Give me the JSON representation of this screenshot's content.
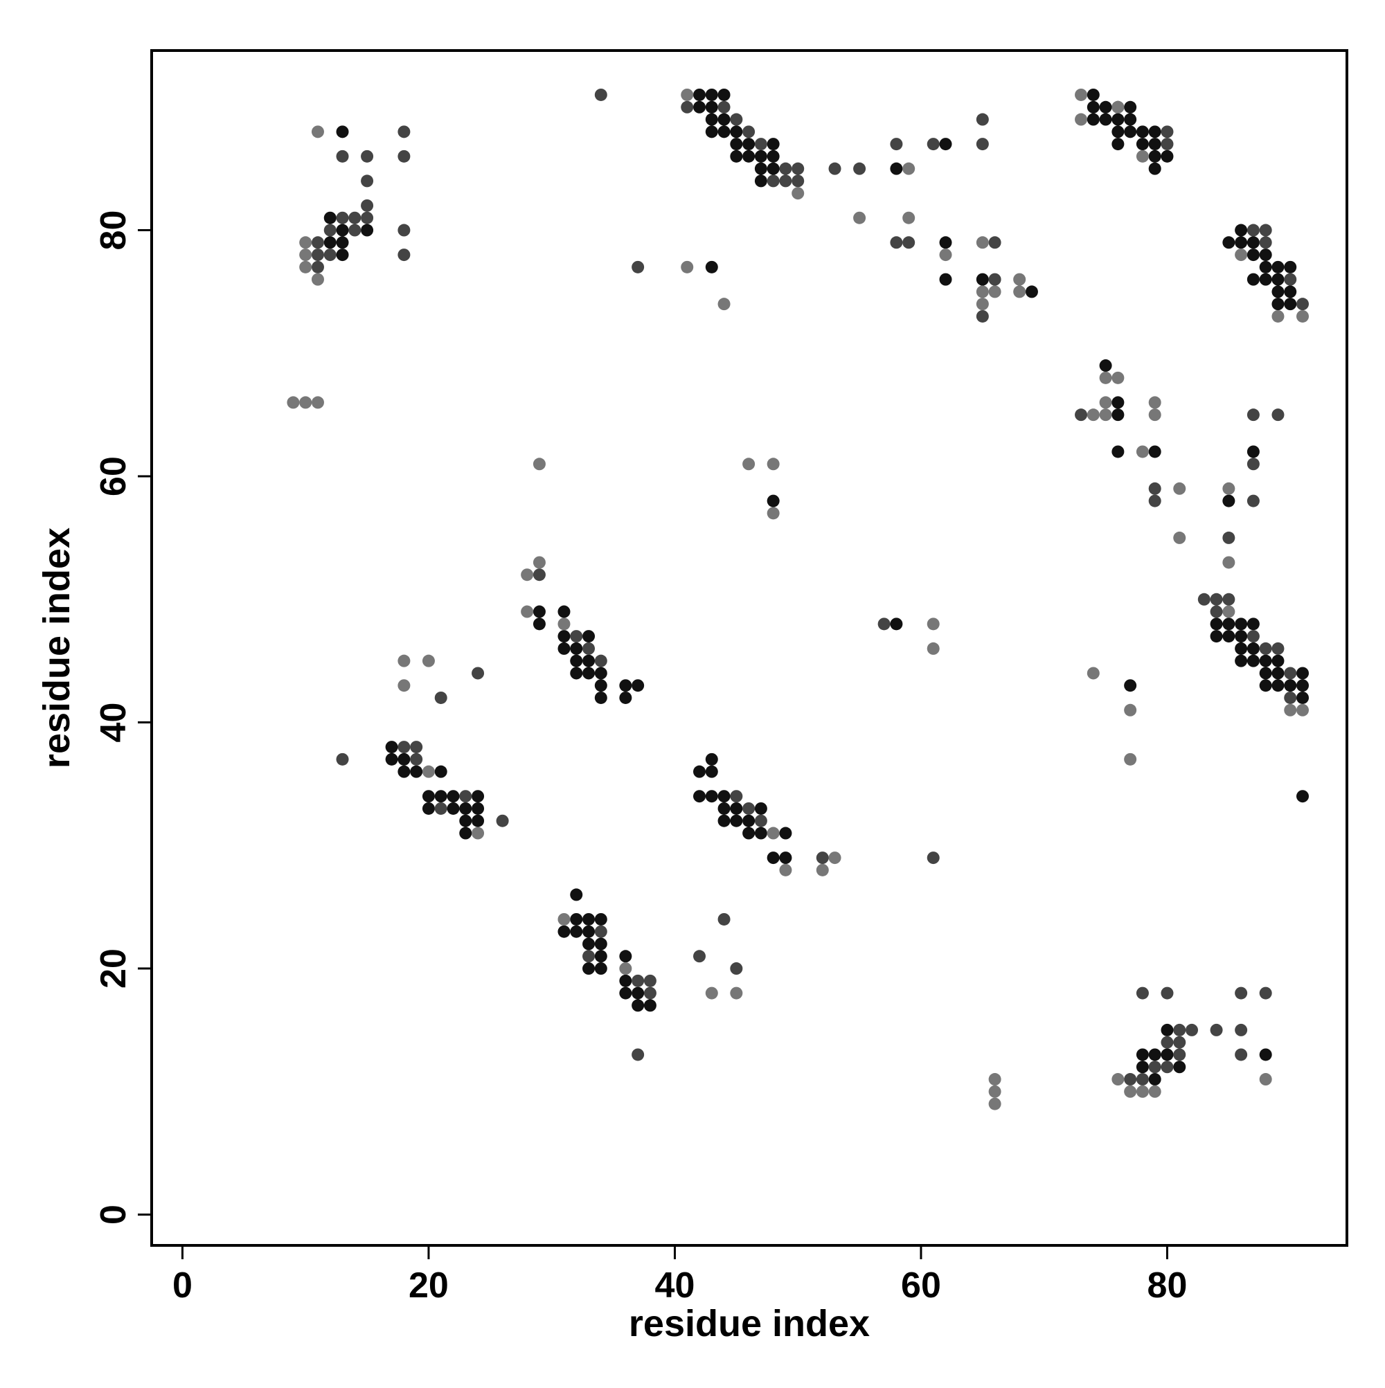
{
  "chart_data": {
    "type": "scatter",
    "xlabel": "residue index",
    "ylabel": "residue index",
    "xlim": [
      -2.5,
      94.6
    ],
    "ylim": [
      -2.5,
      94.6
    ],
    "xticks": [
      0,
      20,
      40,
      60,
      80
    ],
    "yticks": [
      0,
      20,
      40,
      60,
      80
    ],
    "grid": false,
    "series": [
      {
        "color": "#111111",
        "x": [
          42,
          43,
          44,
          74,
          42,
          43,
          74,
          75,
          76,
          77,
          43,
          44,
          74,
          75,
          76,
          77,
          13,
          43,
          44,
          45,
          76,
          77,
          78,
          79,
          45,
          46,
          48,
          62,
          76,
          78,
          79,
          45,
          46,
          47,
          48,
          79,
          80,
          47,
          48,
          58,
          79,
          47,
          12,
          13,
          15,
          86,
          12,
          13,
          62,
          85,
          86,
          87,
          13,
          87,
          88,
          43,
          88,
          89,
          90,
          62,
          65,
          87,
          88,
          89,
          69,
          89,
          90,
          89,
          90,
          75,
          76,
          76,
          76,
          79,
          87,
          48,
          85,
          29,
          31,
          29,
          58,
          84,
          85,
          86,
          87,
          31,
          33,
          84,
          85,
          86,
          31,
          32,
          86,
          87,
          32,
          33,
          86,
          87,
          88,
          89,
          32,
          33,
          34,
          88,
          89,
          91,
          34,
          36,
          37,
          77,
          88,
          89,
          90,
          91,
          34,
          36,
          91,
          17,
          17,
          18,
          43,
          18,
          19,
          21,
          42,
          43,
          20,
          21,
          22,
          24,
          42,
          43,
          44,
          91,
          20,
          22,
          23,
          24,
          44,
          45,
          47,
          23,
          24,
          44,
          45,
          46,
          23,
          46,
          47,
          49,
          48,
          49,
          32,
          32,
          33,
          34,
          31,
          32,
          33,
          33,
          34,
          34,
          36,
          33,
          34,
          36,
          36,
          37,
          37,
          38,
          80,
          78,
          79,
          80,
          88,
          78,
          81,
          79
        ],
        "values": [
          91,
          91,
          91,
          91,
          90,
          90,
          90,
          90,
          90,
          90,
          89,
          89,
          89,
          89,
          89,
          89,
          88,
          88,
          88,
          88,
          88,
          88,
          88,
          88,
          87,
          87,
          87,
          87,
          87,
          87,
          87,
          86,
          86,
          86,
          86,
          86,
          86,
          85,
          85,
          85,
          85,
          84,
          81,
          80,
          80,
          80,
          79,
          79,
          79,
          79,
          79,
          79,
          78,
          78,
          78,
          77,
          77,
          77,
          77,
          76,
          76,
          76,
          76,
          76,
          75,
          75,
          75,
          74,
          74,
          69,
          66,
          65,
          62,
          62,
          62,
          58,
          58,
          49,
          49,
          48,
          48,
          48,
          48,
          48,
          48,
          47,
          47,
          47,
          47,
          47,
          46,
          46,
          46,
          46,
          45,
          45,
          45,
          45,
          45,
          45,
          44,
          44,
          44,
          44,
          44,
          44,
          43,
          43,
          43,
          43,
          43,
          43,
          43,
          43,
          42,
          42,
          42,
          38,
          37,
          37,
          37,
          36,
          36,
          36,
          36,
          36,
          34,
          34,
          34,
          34,
          34,
          34,
          34,
          34,
          33,
          33,
          33,
          33,
          33,
          33,
          33,
          32,
          32,
          32,
          32,
          32,
          31,
          31,
          31,
          31,
          29,
          29,
          26,
          24,
          24,
          24,
          23,
          23,
          23,
          22,
          22,
          21,
          21,
          20,
          20,
          19,
          18,
          18,
          17,
          17,
          15,
          13,
          13,
          13,
          13,
          12,
          12,
          11
        ]
      },
      {
        "color": "#444444",
        "x": [
          34,
          41,
          44,
          45,
          65,
          18,
          46,
          80,
          47,
          58,
          61,
          65,
          80,
          13,
          15,
          18,
          49,
          50,
          53,
          55,
          15,
          48,
          49,
          50,
          15,
          13,
          14,
          15,
          12,
          14,
          18,
          87,
          88,
          11,
          58,
          59,
          66,
          88,
          11,
          12,
          18,
          11,
          37,
          66,
          90,
          91,
          65,
          73,
          87,
          89,
          87,
          79,
          79,
          87,
          85,
          29,
          83,
          84,
          85,
          84,
          57,
          32,
          87,
          33,
          88,
          89,
          34,
          24,
          90,
          21,
          90,
          18,
          19,
          13,
          19,
          23,
          45,
          21,
          46,
          26,
          47,
          52,
          61,
          44,
          34,
          33,
          42,
          45,
          37,
          38,
          38,
          78,
          80,
          86,
          88,
          81,
          82,
          84,
          86,
          80,
          81,
          37,
          81,
          86,
          79,
          80,
          77,
          78
        ],
        "values": [
          91,
          90,
          90,
          89,
          89,
          88,
          88,
          88,
          87,
          87,
          87,
          87,
          87,
          86,
          86,
          86,
          85,
          85,
          85,
          85,
          84,
          84,
          84,
          84,
          82,
          81,
          81,
          81,
          80,
          80,
          80,
          80,
          80,
          79,
          79,
          79,
          79,
          79,
          78,
          78,
          78,
          77,
          77,
          76,
          76,
          74,
          73,
          65,
          65,
          65,
          61,
          59,
          58,
          58,
          55,
          52,
          50,
          50,
          50,
          49,
          48,
          47,
          47,
          46,
          46,
          46,
          45,
          44,
          44,
          42,
          42,
          38,
          38,
          37,
          37,
          34,
          34,
          33,
          33,
          32,
          32,
          29,
          29,
          24,
          23,
          21,
          21,
          20,
          19,
          19,
          18,
          18,
          18,
          18,
          18,
          15,
          15,
          15,
          15,
          14,
          14,
          13,
          13,
          13,
          12,
          12,
          11,
          11
        ]
      },
      {
        "color": "#777777",
        "x": [
          41,
          73,
          76,
          73,
          11,
          78,
          59,
          50,
          55,
          59,
          10,
          65,
          10,
          62,
          86,
          10,
          41,
          11,
          68,
          65,
          66,
          68,
          44,
          65,
          89,
          91,
          75,
          76,
          9,
          10,
          11,
          75,
          79,
          74,
          75,
          79,
          78,
          29,
          46,
          48,
          81,
          85,
          48,
          81,
          29,
          85,
          28,
          28,
          85,
          31,
          61,
          61,
          18,
          20,
          74,
          18,
          77,
          90,
          91,
          77,
          20,
          24,
          48,
          53,
          49,
          52,
          31,
          36,
          43,
          45,
          66,
          76,
          88,
          66,
          77,
          78,
          79,
          66
        ],
        "values": [
          91,
          91,
          90,
          89,
          88,
          86,
          85,
          83,
          81,
          81,
          79,
          79,
          78,
          78,
          78,
          77,
          77,
          76,
          76,
          75,
          75,
          75,
          74,
          74,
          73,
          73,
          68,
          68,
          66,
          66,
          66,
          66,
          66,
          65,
          65,
          65,
          62,
          61,
          61,
          61,
          59,
          59,
          57,
          55,
          53,
          53,
          52,
          49,
          49,
          48,
          48,
          46,
          45,
          45,
          44,
          43,
          41,
          41,
          41,
          37,
          36,
          31,
          31,
          29,
          28,
          28,
          24,
          20,
          18,
          18,
          11,
          11,
          11,
          10,
          10,
          10,
          10,
          9
        ]
      }
    ]
  }
}
